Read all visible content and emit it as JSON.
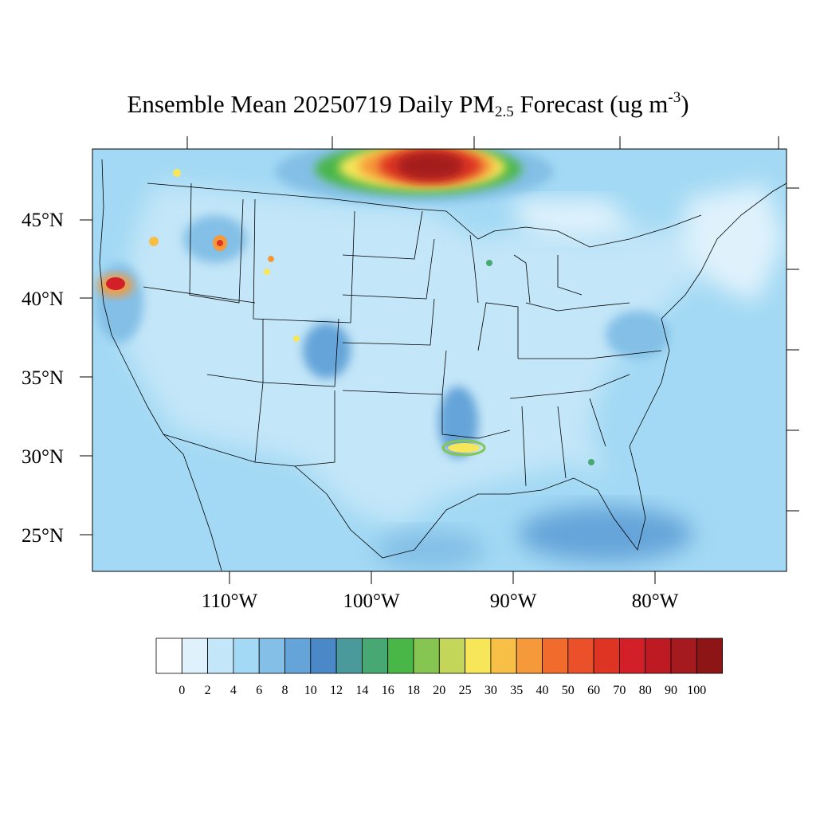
{
  "title": {
    "prefix": "Ensemble Mean 20250719 Daily PM",
    "subscript": "2.5",
    "middle": " Forecast (ug m",
    "superscript": "-3",
    "suffix": ")"
  },
  "axes": {
    "lat_labels": [
      "45°N",
      "40°N",
      "35°N",
      "30°N",
      "25°N"
    ],
    "lon_labels": [
      "110°W",
      "100°W",
      "90°W",
      "80°W"
    ]
  },
  "colorbar": {
    "levels": [
      "0",
      "2",
      "4",
      "6",
      "8",
      "10",
      "12",
      "14",
      "16",
      "18",
      "20",
      "25",
      "30",
      "35",
      "40",
      "50",
      "60",
      "70",
      "80",
      "90",
      "100"
    ],
    "colors": [
      "#ffffff",
      "#dff2fc",
      "#c3e6f8",
      "#a3d9f4",
      "#83bfe6",
      "#65a4d9",
      "#4a88c8",
      "#4a9a9c",
      "#47a874",
      "#49b648",
      "#87c552",
      "#c3d659",
      "#f6e658",
      "#f8bf47",
      "#f6993a",
      "#f16c2c",
      "#ea5029",
      "#dd3424",
      "#d31f27",
      "#bd1a24",
      "#a51a1f",
      "#8e1516"
    ]
  }
}
